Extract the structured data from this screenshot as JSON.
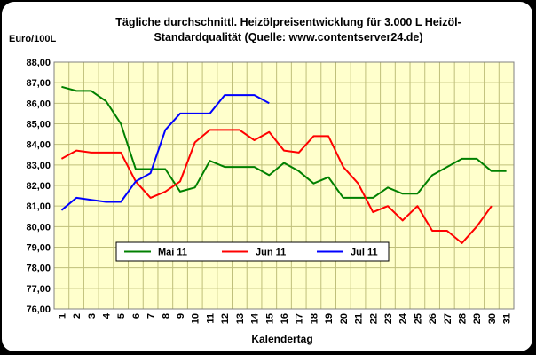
{
  "chart_data": {
    "type": "line",
    "title_line1": "Tägliche durchschnittl. Heizölpreisentwicklung für 3.000 L Heizöl-",
    "title_line2": "Standardqualität (Quelle: www.contentserver24.de)",
    "ylabel": "Euro/100L",
    "xlabel": "Kalendertag",
    "ylim": [
      76,
      88
    ],
    "ytick_step": 1,
    "ytick_labels": [
      "76,00",
      "77,00",
      "78,00",
      "79,00",
      "80,00",
      "81,00",
      "82,00",
      "83,00",
      "84,00",
      "85,00",
      "86,00",
      "87,00",
      "88,00"
    ],
    "x": [
      1,
      2,
      3,
      4,
      5,
      6,
      7,
      8,
      9,
      10,
      11,
      12,
      13,
      14,
      15,
      16,
      17,
      18,
      19,
      20,
      21,
      22,
      23,
      24,
      25,
      26,
      27,
      28,
      29,
      30,
      31
    ],
    "xtick_labels": [
      "1",
      "2",
      "3",
      "4",
      "5",
      "6",
      "7",
      "8",
      "9",
      "10",
      "11",
      "12",
      "13",
      "14",
      "15",
      "16",
      "17",
      "18",
      "19",
      "20",
      "21",
      "22",
      "23",
      "24",
      "25",
      "26",
      "27",
      "28",
      "29",
      "30",
      "31"
    ],
    "grid": true,
    "plot_background": "#ffffcc",
    "grid_color": "#bfbf7a",
    "legend": {
      "placement": "lower-left"
    },
    "series": [
      {
        "name": "Mai 11",
        "color": "#008000",
        "x": [
          1,
          2,
          3,
          4,
          5,
          6,
          7,
          8,
          9,
          10,
          11,
          12,
          13,
          14,
          15,
          16,
          17,
          18,
          19,
          20,
          21,
          22,
          23,
          24,
          25,
          26,
          27,
          28,
          29,
          30,
          31
        ],
        "values": [
          86.8,
          86.6,
          86.6,
          86.1,
          85.0,
          82.8,
          82.8,
          82.8,
          81.7,
          81.9,
          83.2,
          82.9,
          82.9,
          82.9,
          82.5,
          83.1,
          82.7,
          82.1,
          82.4,
          81.4,
          81.4,
          81.4,
          81.9,
          81.6,
          81.6,
          82.5,
          82.9,
          83.3,
          83.3,
          82.7,
          82.7
        ]
      },
      {
        "name": "Jun 11",
        "color": "#ff0000",
        "x": [
          1,
          2,
          3,
          4,
          5,
          6,
          7,
          8,
          9,
          10,
          11,
          12,
          13,
          14,
          15,
          16,
          17,
          18,
          19,
          20,
          21,
          22,
          23,
          24,
          25,
          26,
          27,
          28,
          29,
          30
        ],
        "values": [
          83.3,
          83.7,
          83.6,
          83.6,
          83.6,
          82.2,
          81.4,
          81.7,
          82.2,
          84.1,
          84.7,
          84.7,
          84.7,
          84.2,
          84.6,
          83.7,
          83.6,
          84.4,
          84.4,
          82.9,
          82.1,
          80.7,
          81.0,
          80.3,
          81.0,
          79.8,
          79.8,
          79.2,
          80.0,
          81.0
        ]
      },
      {
        "name": "Jul 11",
        "color": "#0000ff",
        "x": [
          1,
          2,
          3,
          4,
          5,
          6,
          7,
          8,
          9,
          10,
          11,
          12,
          13,
          14,
          15
        ],
        "values": [
          80.8,
          81.4,
          81.3,
          81.2,
          81.2,
          82.2,
          82.6,
          84.7,
          85.5,
          85.5,
          85.5,
          86.4,
          86.4,
          86.4,
          86.0
        ]
      }
    ]
  }
}
